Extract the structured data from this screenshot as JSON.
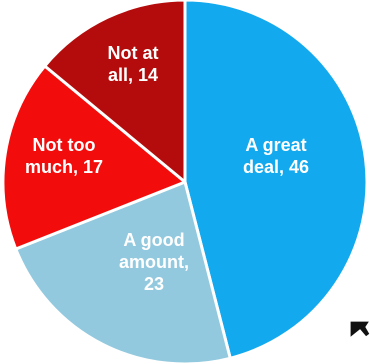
{
  "chart_data": {
    "type": "pie",
    "categories": [
      "A great deal",
      "A good amount",
      "Not too much",
      "Not at all"
    ],
    "values": [
      46,
      23,
      17,
      14
    ],
    "colors": [
      "#12a9ef",
      "#93c9de",
      "#f20c0c",
      "#b40c0c"
    ],
    "data_labels": [
      [
        "A great",
        "deal, 46"
      ],
      [
        "A good",
        "amount,",
        "23"
      ],
      [
        "Not too",
        "much, 17"
      ],
      [
        "Not at",
        "all, 14"
      ]
    ],
    "start_angle_deg": 0,
    "direction": "clockwise",
    "slice_border_color": "#ffffff"
  },
  "annotations": {
    "cursor_icon": "arrow-cursor-icon"
  }
}
